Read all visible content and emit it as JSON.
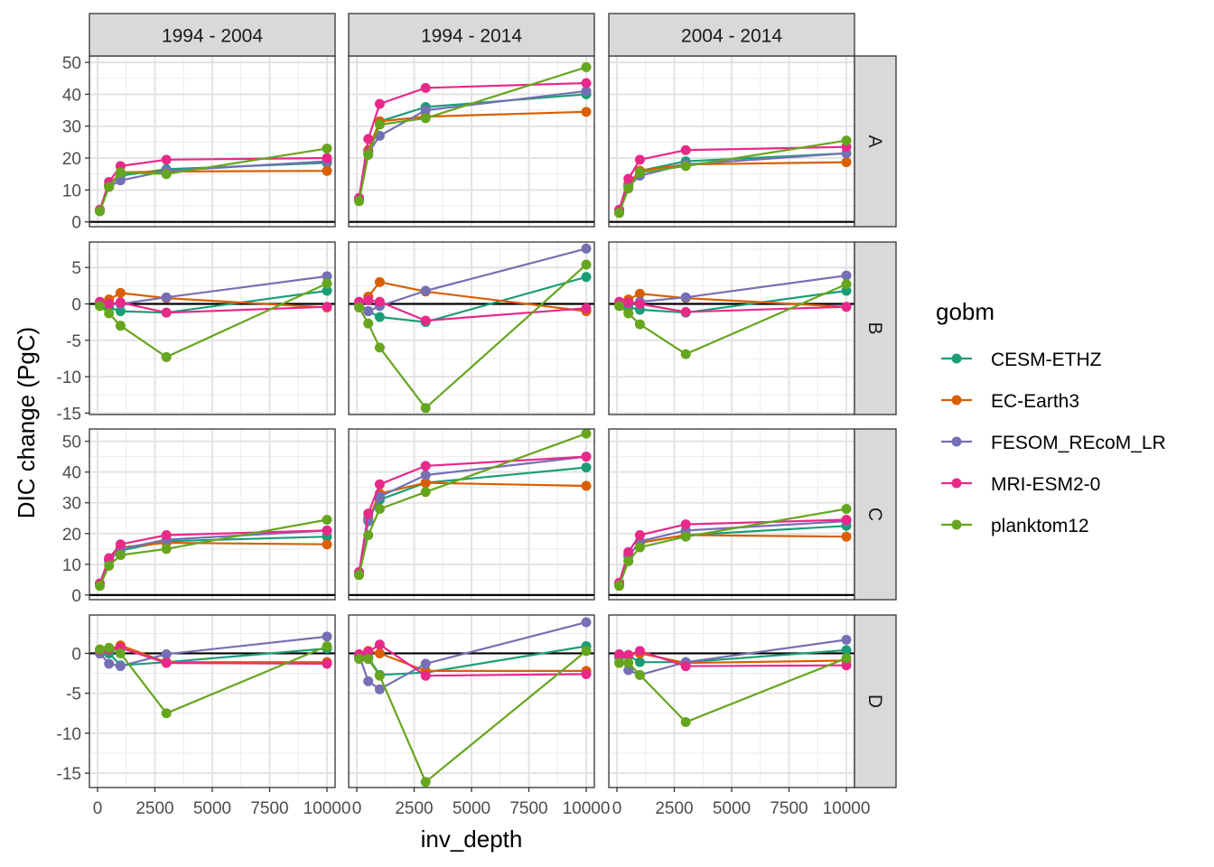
{
  "chart_data": {
    "type": "line",
    "xlabel": "inv_depth",
    "ylabel": "DIC change (PgC)",
    "legend": {
      "title": "gobm",
      "position": "right"
    },
    "facet_columns": [
      "1994 - 2004",
      "1994 - 2014",
      "2004 - 2014"
    ],
    "facet_rows": [
      "A",
      "B",
      "C",
      "D"
    ],
    "x_range": [
      0,
      10000
    ],
    "x_ticks": [
      0,
      2500,
      5000,
      7500,
      10000
    ],
    "x_tick_labels": [
      "0",
      "2500",
      "5000",
      "7500",
      "10000"
    ],
    "x": [
      100,
      500,
      1000,
      3000,
      10000
    ],
    "row_scales": [
      {
        "ylim": [
          -1.5,
          52
        ],
        "ticks": [
          0,
          10,
          20,
          30,
          40,
          50
        ],
        "tick_labels": [
          "0",
          "10",
          "20",
          "30",
          "40",
          "50"
        ]
      },
      {
        "ylim": [
          -15.2,
          8.5
        ],
        "ticks": [
          -15,
          -10,
          -5,
          0,
          5
        ],
        "tick_labels": [
          "-15",
          "-10",
          "-5",
          "0",
          "5"
        ]
      },
      {
        "ylim": [
          -1.5,
          54
        ],
        "ticks": [
          0,
          10,
          20,
          30,
          40,
          50
        ],
        "tick_labels": [
          "0",
          "10",
          "20",
          "30",
          "40",
          "50"
        ]
      },
      {
        "ylim": [
          -16.8,
          4.8
        ],
        "ticks": [
          -15,
          -10,
          -5,
          0
        ],
        "tick_labels": [
          "-15",
          "-10",
          "-5",
          "0"
        ]
      }
    ],
    "series": [
      {
        "name": "CESM-ETHZ",
        "color": "#1b9e77"
      },
      {
        "name": "EC-Earth3",
        "color": "#d95f02"
      },
      {
        "name": "FESOM_REcoM_LR",
        "color": "#7570b3"
      },
      {
        "name": "MRI-ESM2-0",
        "color": "#e7298a"
      },
      {
        "name": "planktom12",
        "color": "#66a61e"
      }
    ],
    "panels": [
      {
        "row": "A",
        "col": "1994 - 2004",
        "values": {
          "CESM-ETHZ": [
            3.5,
            11.5,
            14.5,
            16.5,
            18.5
          ],
          "EC-Earth3": [
            3.5,
            11.5,
            15.5,
            15.8,
            16.0
          ],
          "FESOM_REcoM_LR": [
            3.5,
            11.0,
            13.0,
            16.0,
            19.0
          ],
          "MRI-ESM2-0": [
            3.8,
            12.5,
            17.5,
            19.5,
            20.0
          ],
          "planktom12": [
            3.3,
            11.0,
            15.5,
            15.0,
            23.0
          ]
        }
      },
      {
        "row": "A",
        "col": "1994 - 2014",
        "values": {
          "CESM-ETHZ": [
            7.0,
            22.0,
            31.5,
            36.0,
            40.0
          ],
          "EC-Earth3": [
            7.0,
            22.5,
            31.5,
            33.0,
            34.5
          ],
          "FESOM_REcoM_LR": [
            7.0,
            21.5,
            27.0,
            35.0,
            41.0
          ],
          "MRI-ESM2-0": [
            7.5,
            26.0,
            37.0,
            42.0,
            43.5
          ],
          "planktom12": [
            6.5,
            21.0,
            30.5,
            32.5,
            48.5
          ]
        }
      },
      {
        "row": "A",
        "col": "2004 - 2014",
        "values": {
          "CESM-ETHZ": [
            3.5,
            11.5,
            16.0,
            19.0,
            21.5
          ],
          "EC-Earth3": [
            3.5,
            12.0,
            16.0,
            18.0,
            18.7
          ],
          "FESOM_REcoM_LR": [
            3.5,
            11.0,
            14.5,
            18.0,
            21.5
          ],
          "MRI-ESM2-0": [
            3.8,
            13.5,
            19.5,
            22.5,
            23.5
          ],
          "planktom12": [
            2.8,
            10.5,
            15.5,
            17.5,
            25.5
          ]
        }
      },
      {
        "row": "B",
        "col": "1994 - 2004",
        "values": {
          "CESM-ETHZ": [
            0.0,
            -0.5,
            -1.0,
            -1.2,
            1.8
          ],
          "EC-Earth3": [
            0.0,
            0.6,
            1.5,
            0.8,
            -0.5
          ],
          "FESOM_REcoM_LR": [
            0.0,
            0.0,
            0.0,
            0.9,
            3.8
          ],
          "MRI-ESM2-0": [
            0.3,
            0.0,
            0.2,
            -1.2,
            -0.4
          ],
          "planktom12": [
            -0.3,
            -1.3,
            -3.0,
            -7.3,
            2.8
          ]
        }
      },
      {
        "row": "B",
        "col": "1994 - 2014",
        "values": {
          "CESM-ETHZ": [
            0.0,
            -1.0,
            -1.8,
            -2.5,
            3.7
          ],
          "EC-Earth3": [
            0.0,
            1.0,
            3.0,
            1.7,
            -1.0
          ],
          "FESOM_REcoM_LR": [
            0.0,
            -1.0,
            -0.3,
            1.8,
            7.6
          ],
          "MRI-ESM2-0": [
            0.3,
            0.5,
            0.3,
            -2.3,
            -0.6
          ],
          "planktom12": [
            -0.5,
            -2.7,
            -6.0,
            -14.3,
            5.4
          ]
        }
      },
      {
        "row": "B",
        "col": "2004 - 2014",
        "values": {
          "CESM-ETHZ": [
            0.0,
            -0.5,
            -0.8,
            -1.2,
            1.8
          ],
          "EC-Earth3": [
            0.0,
            0.6,
            1.4,
            0.8,
            -0.4
          ],
          "FESOM_REcoM_LR": [
            0.0,
            0.1,
            0.3,
            0.9,
            3.9
          ],
          "MRI-ESM2-0": [
            0.3,
            0.2,
            0.0,
            -1.1,
            -0.4
          ],
          "planktom12": [
            -0.3,
            -1.3,
            -2.8,
            -6.9,
            2.7
          ]
        }
      },
      {
        "row": "C",
        "col": "1994 - 2004",
        "values": {
          "CESM-ETHZ": [
            3.5,
            11.5,
            14.5,
            17.5,
            19.0
          ],
          "EC-Earth3": [
            3.5,
            11.5,
            15.5,
            17.0,
            16.5
          ],
          "FESOM_REcoM_LR": [
            3.5,
            11.0,
            15.0,
            18.0,
            21.0
          ],
          "MRI-ESM2-0": [
            3.8,
            12.0,
            16.5,
            19.5,
            21.0
          ],
          "planktom12": [
            3.0,
            9.5,
            13.0,
            15.0,
            24.5
          ]
        }
      },
      {
        "row": "C",
        "col": "1994 - 2014",
        "values": {
          "CESM-ETHZ": [
            7.0,
            25.0,
            31.0,
            36.5,
            41.5
          ],
          "EC-Earth3": [
            7.0,
            24.5,
            33.0,
            36.5,
            35.5
          ],
          "FESOM_REcoM_LR": [
            7.0,
            24.0,
            32.0,
            39.0,
            45.0
          ],
          "MRI-ESM2-0": [
            7.5,
            26.5,
            36.0,
            42.0,
            45.0
          ],
          "planktom12": [
            6.5,
            19.5,
            28.0,
            33.5,
            52.5
          ]
        }
      },
      {
        "row": "C",
        "col": "2004 - 2014",
        "values": {
          "CESM-ETHZ": [
            3.5,
            13.0,
            17.0,
            19.5,
            22.5
          ],
          "EC-Earth3": [
            3.5,
            13.0,
            17.0,
            19.5,
            19.0
          ],
          "FESOM_REcoM_LR": [
            3.5,
            12.5,
            17.5,
            21.0,
            24.0
          ],
          "MRI-ESM2-0": [
            4.0,
            14.0,
            19.5,
            23.0,
            24.5
          ],
          "planktom12": [
            3.0,
            11.0,
            15.5,
            19.0,
            28.0
          ]
        }
      },
      {
        "row": "D",
        "col": "1994 - 2004",
        "values": {
          "CESM-ETHZ": [
            0.0,
            0.0,
            -1.5,
            -1.1,
            0.6
          ],
          "EC-Earth3": [
            0.0,
            0.5,
            1.0,
            -1.1,
            -1.1
          ],
          "FESOM_REcoM_LR": [
            0.0,
            -1.3,
            -1.6,
            -0.1,
            2.1
          ],
          "MRI-ESM2-0": [
            0.4,
            0.5,
            0.7,
            -1.2,
            -1.3
          ],
          "planktom12": [
            0.5,
            0.7,
            0.0,
            -7.5,
            0.9
          ]
        }
      },
      {
        "row": "D",
        "col": "1994 - 2014",
        "values": {
          "CESM-ETHZ": [
            -0.5,
            -0.5,
            -2.7,
            -2.4,
            0.9
          ],
          "EC-Earth3": [
            -0.2,
            0.3,
            0.0,
            -2.2,
            -2.2
          ],
          "FESOM_REcoM_LR": [
            -0.2,
            -3.5,
            -4.5,
            -1.3,
            3.9
          ],
          "MRI-ESM2-0": [
            -0.1,
            0.2,
            1.1,
            -2.8,
            -2.6
          ],
          "planktom12": [
            -0.7,
            -0.7,
            -2.8,
            -16.1,
            0.3
          ]
        }
      },
      {
        "row": "D",
        "col": "2004 - 2014",
        "values": {
          "CESM-ETHZ": [
            -0.5,
            -0.3,
            -1.1,
            -1.1,
            0.4
          ],
          "EC-Earth3": [
            -0.3,
            -0.2,
            0.0,
            -1.2,
            -0.9
          ],
          "FESOM_REcoM_LR": [
            -0.3,
            -2.1,
            -2.7,
            -1.1,
            1.7
          ],
          "MRI-ESM2-0": [
            -0.1,
            -0.2,
            0.3,
            -1.6,
            -1.5
          ],
          "planktom12": [
            -1.2,
            -1.2,
            -2.7,
            -8.6,
            -0.6
          ]
        }
      }
    ]
  }
}
